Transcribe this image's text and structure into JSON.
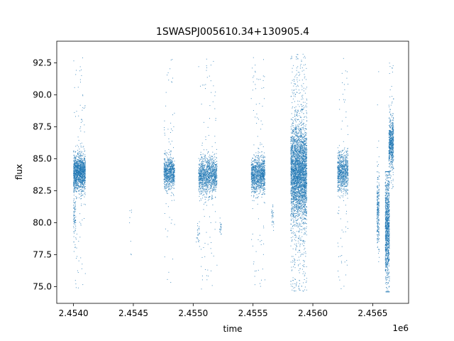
{
  "chart_data": {
    "type": "scatter",
    "title": "1SWASPJ005610.34+130905.4",
    "xlabel": "time",
    "ylabel": "flux",
    "x_offset_label": "1e6",
    "xlim": [
      2453835,
      2456775
    ],
    "ylim": [
      73.7,
      94.2
    ],
    "x_ticks": [
      2453975,
      2454475,
      2454975,
      2455475,
      2455975,
      2456475
    ],
    "x_tick_labels": [
      "2.4540",
      "2.4545",
      "2.4550",
      "2.4555",
      "2.4560",
      "2.4565"
    ],
    "y_ticks": [
      75.0,
      77.5,
      80.0,
      82.5,
      85.0,
      87.5,
      90.0,
      92.5
    ],
    "y_tick_labels": [
      "75.0",
      "77.5",
      "80.0",
      "82.5",
      "85.0",
      "87.5",
      "90.0",
      "92.5"
    ],
    "grid": false,
    "legend": "none",
    "marker_color": "#1f77b4",
    "clusters": [
      {
        "x_start": 2453975,
        "x_end": 2454075,
        "y_center": 83.9,
        "y_spread": 0.7,
        "y_min": 74.9,
        "y_max": 93.2,
        "n": 1400,
        "outlier_frac": 0.08
      },
      {
        "x_start": 2453975,
        "x_end": 2453995,
        "y_center": 80.5,
        "y_spread": 0.8,
        "y_min": 78.5,
        "y_max": 82.5,
        "n": 70,
        "outlier_frac": 0.0
      },
      {
        "x_start": 2454730,
        "x_end": 2454820,
        "y_center": 83.9,
        "y_spread": 0.6,
        "y_min": 75.0,
        "y_max": 93.0,
        "n": 800,
        "outlier_frac": 0.08
      },
      {
        "x_start": 2455020,
        "x_end": 2455175,
        "y_center": 83.7,
        "y_spread": 0.7,
        "y_min": 74.8,
        "y_max": 92.8,
        "n": 1200,
        "outlier_frac": 0.08
      },
      {
        "x_start": 2455000,
        "x_end": 2455030,
        "y_center": 79.3,
        "y_spread": 0.4,
        "y_min": 78.5,
        "y_max": 80.2,
        "n": 25,
        "outlier_frac": 0.0
      },
      {
        "x_start": 2455195,
        "x_end": 2455210,
        "y_center": 79.7,
        "y_spread": 0.35,
        "y_min": 79.0,
        "y_max": 80.4,
        "n": 20,
        "outlier_frac": 0.0
      },
      {
        "x_start": 2455460,
        "x_end": 2455575,
        "y_center": 83.8,
        "y_spread": 0.7,
        "y_min": 75.0,
        "y_max": 93.0,
        "n": 1100,
        "outlier_frac": 0.08
      },
      {
        "x_start": 2455630,
        "x_end": 2455650,
        "y_center": 80.5,
        "y_spread": 0.5,
        "y_min": 79.4,
        "y_max": 81.4,
        "n": 30,
        "outlier_frac": 0.0
      },
      {
        "x_start": 2455790,
        "x_end": 2455925,
        "y_center": 83.9,
        "y_spread": 1.8,
        "y_min": 74.6,
        "y_max": 93.2,
        "n": 3500,
        "outlier_frac": 0.15
      },
      {
        "x_start": 2456180,
        "x_end": 2456270,
        "y_center": 84.0,
        "y_spread": 0.8,
        "y_min": 74.8,
        "y_max": 92.9,
        "n": 800,
        "outlier_frac": 0.08
      },
      {
        "x_start": 2456510,
        "x_end": 2456530,
        "y_center": 81.0,
        "y_spread": 1.5,
        "y_min": 75.5,
        "y_max": 92.3,
        "n": 250,
        "outlier_frac": 0.05
      },
      {
        "x_start": 2456580,
        "x_end": 2456615,
        "y_center": 79.5,
        "y_spread": 2.2,
        "y_min": 74.6,
        "y_max": 84.0,
        "n": 1000,
        "outlier_frac": 0.03
      },
      {
        "x_start": 2456610,
        "x_end": 2456650,
        "y_center": 86.2,
        "y_spread": 1.0,
        "y_min": 82.5,
        "y_max": 92.8,
        "n": 600,
        "outlier_frac": 0.08
      },
      {
        "x_start": 2454440,
        "x_end": 2454460,
        "y_center": 79.8,
        "y_spread": 1.5,
        "y_min": 77.5,
        "y_max": 81.5,
        "n": 8,
        "outlier_frac": 0.0
      }
    ]
  }
}
